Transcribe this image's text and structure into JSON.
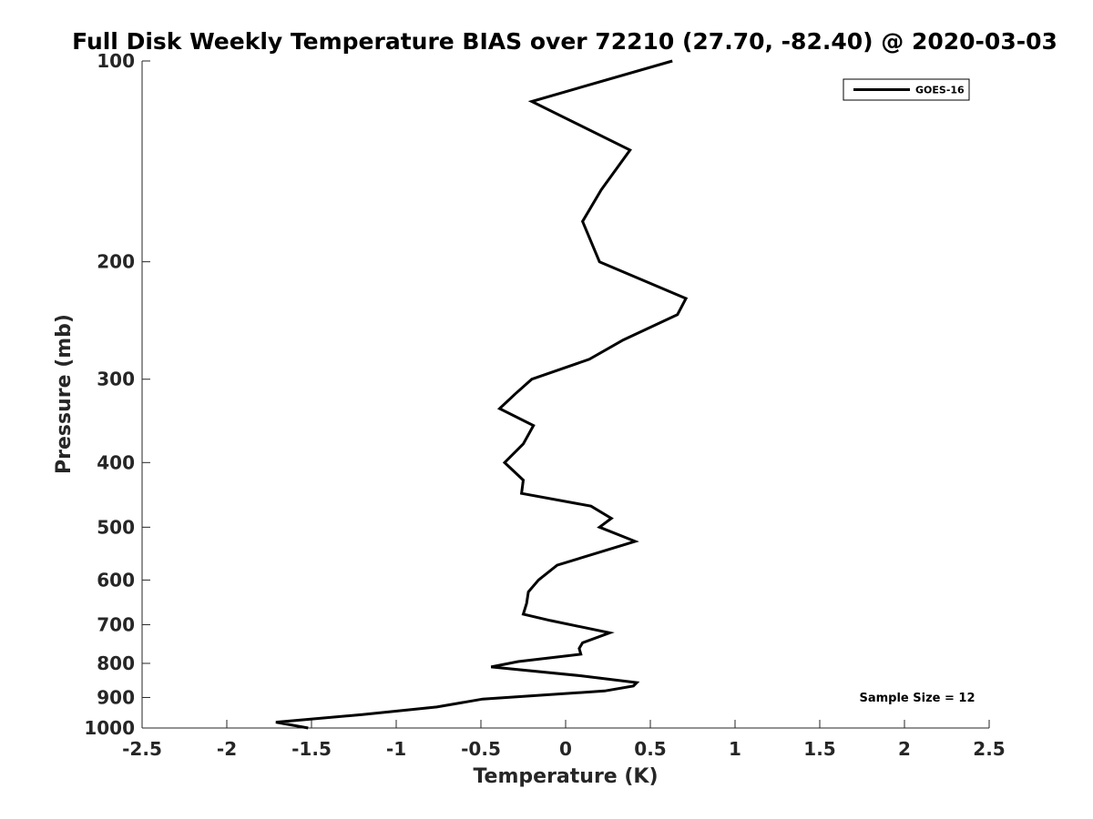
{
  "chart_data": {
    "type": "line",
    "title": "Full Disk Weekly Temperature BIAS over 72210 (27.70, -82.40) @ 2020-03-03",
    "xlabel": "Temperature (K)",
    "ylabel": "Pressure (mb)",
    "xlim": [
      -2.5,
      2.5
    ],
    "ylim": [
      1000,
      100
    ],
    "yscale": "log",
    "yreverse": true,
    "grid": false,
    "xticks": [
      -2.5,
      -2,
      -1.5,
      -1,
      -0.5,
      0,
      0.5,
      1,
      1.5,
      2,
      2.5
    ],
    "xtick_labels": [
      "-2.5",
      "-2",
      "-1.5",
      "-1",
      "-0.5",
      "0",
      "0.5",
      "1",
      "1.5",
      "2",
      "2.5"
    ],
    "yticks": [
      100,
      200,
      300,
      400,
      500,
      600,
      700,
      800,
      900,
      1000
    ],
    "ytick_labels": [
      "100",
      "200",
      "300",
      "400",
      "500",
      "600",
      "700",
      "800",
      "900",
      "1000"
    ],
    "legend_position": "top-right",
    "annotation": "Sample Size = 12",
    "color": "#000000",
    "series": [
      {
        "name": "GOES-16",
        "x": [
          0.63,
          -0.2,
          0.38,
          0.21,
          0.1,
          0.2,
          0.71,
          0.66,
          0.34,
          0.14,
          -0.2,
          -0.3,
          -0.39,
          -0.19,
          -0.25,
          -0.36,
          -0.25,
          -0.26,
          0.15,
          0.27,
          0.2,
          0.41,
          -0.05,
          -0.16,
          -0.22,
          -0.23,
          -0.25,
          -0.09,
          0.26,
          0.1,
          0.08,
          0.09,
          -0.28,
          -0.44,
          0.09,
          0.42,
          0.4,
          0.23,
          -0.49,
          -0.76,
          -1.2,
          -1.71,
          -1.52
        ],
        "y": [
          100,
          115,
          136,
          156,
          174,
          200,
          227,
          240,
          262,
          280,
          300,
          316,
          332,
          352,
          375,
          400,
          425,
          445,
          465,
          485,
          500,
          525,
          570,
          600,
          625,
          650,
          675,
          690,
          720,
          745,
          760,
          775,
          795,
          810,
          835,
          855,
          865,
          880,
          905,
          930,
          955,
          980,
          1000
        ]
      }
    ]
  }
}
